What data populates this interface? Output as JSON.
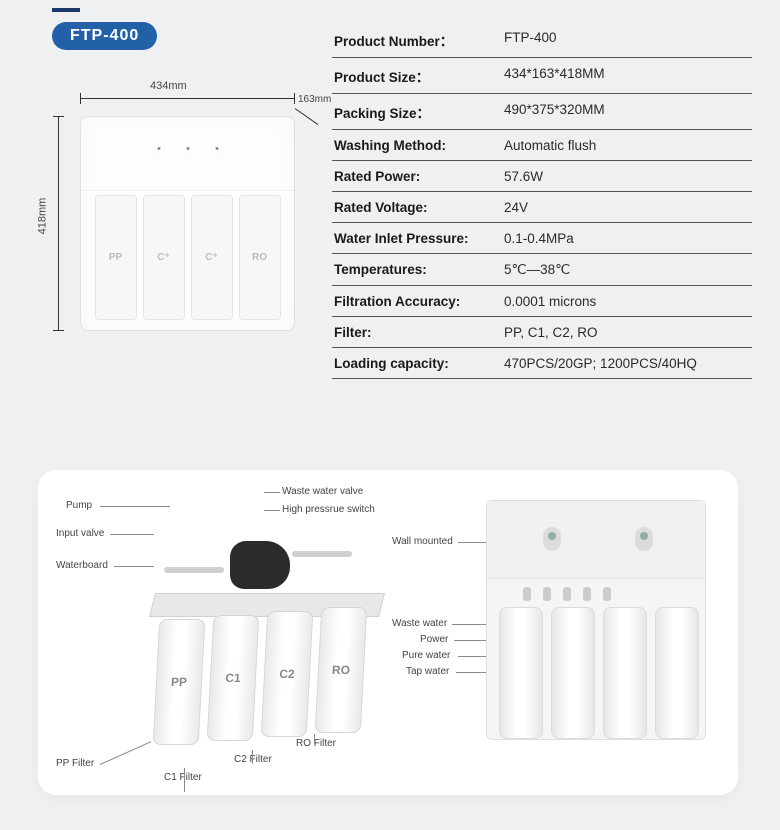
{
  "accent_color": "#2261a8",
  "badge": "FTP-400",
  "dimensions": {
    "width": "434mm",
    "depth": "163mm",
    "height": "418mm"
  },
  "filters_top": [
    "PP",
    "C⁺",
    "C⁺",
    "RO"
  ],
  "specs": [
    {
      "label": "Product Number：",
      "value": "FTP-400"
    },
    {
      "label": "Product Size：",
      "value": "434*163*418MM"
    },
    {
      "label": "Packing Size：",
      "value": "490*375*320MM"
    },
    {
      "label": "Washing Method:",
      "value": "Automatic flush"
    },
    {
      "label": "Rated Power:",
      "value": "57.6W"
    },
    {
      "label": "Rated Voltage:",
      "value": "24V"
    },
    {
      "label": "Water Inlet Pressure:",
      "value": "0.1-0.4MPa"
    },
    {
      "label": "Temperatures:",
      "value": "5℃—38℃"
    },
    {
      "label": "Filtration Accuracy:",
      "value": "0.0001 microns"
    },
    {
      "label": "Filter:",
      "value": "PP, C1, C2, RO"
    },
    {
      "label": "Loading capacity:",
      "value": "470PCS/20GP; 1200PCS/40HQ"
    }
  ],
  "internals_filters": [
    "PP",
    "C1",
    "C2",
    "RO"
  ],
  "callouts_left": {
    "pump": "Pump",
    "input_valve": "Input valve",
    "waterboard": "Waterboard",
    "waste_valve": "Waste water valve",
    "high_pressure": "High pressrue switch",
    "pp_filter": "PP Filter",
    "c1_filter": "C1 Filter",
    "c2_filter": "C2 Filter",
    "ro_filter": "RO Filter"
  },
  "callouts_right": {
    "wall_mounted": "Wall mounted",
    "waste_water": "Waste water",
    "power": "Power",
    "pure_water": "Pure water",
    "tap_water": "Tap water"
  }
}
